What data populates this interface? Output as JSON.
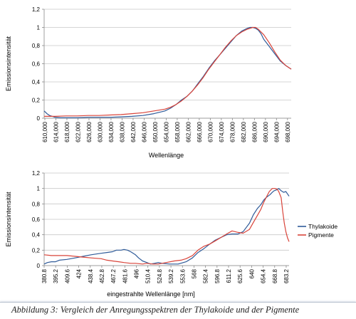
{
  "chart_data": [
    {
      "type": "line",
      "title": "",
      "xlabel": "Wellenlänge",
      "ylabel": "Emissionsintensität",
      "ylim": [
        0,
        1.2
      ],
      "yticks": [
        "0",
        "0,2",
        "0,4",
        "0,6",
        "0,8",
        "1",
        "1,2"
      ],
      "xlim": [
        610,
        700
      ],
      "xticks": [
        "610,000",
        "614,000",
        "618,000",
        "622,000",
        "626,000",
        "630,000",
        "634,000",
        "638,000",
        "642,000",
        "646,000",
        "650,000",
        "654,000",
        "658,000",
        "662,000",
        "666,000",
        "670,000",
        "674,000",
        "678,000",
        "682,000",
        "686,000",
        "690,000",
        "694,000",
        "698,000"
      ],
      "grid": "horizontal",
      "legend": "none",
      "series": [
        {
          "color": "#2f5b99",
          "x": [
            610,
            611,
            612,
            613,
            614,
            616,
            618,
            622,
            626,
            630,
            634,
            638,
            642,
            646,
            650,
            654,
            656,
            658,
            660,
            662,
            664,
            666,
            668,
            670,
            672,
            674,
            676,
            678,
            680,
            682,
            684,
            685,
            686,
            687,
            688,
            689,
            690,
            692,
            694,
            696,
            698,
            700
          ],
          "y": [
            0.08,
            0.05,
            0.03,
            0.02,
            0.01,
            0.005,
            0.005,
            0.005,
            0.01,
            0.01,
            0.01,
            0.015,
            0.02,
            0.03,
            0.05,
            0.08,
            0.11,
            0.15,
            0.2,
            0.24,
            0.3,
            0.38,
            0.46,
            0.55,
            0.63,
            0.7,
            0.77,
            0.84,
            0.91,
            0.96,
            0.99,
            1.0,
            1.0,
            0.99,
            0.97,
            0.93,
            0.87,
            0.79,
            0.71,
            0.63,
            0.58,
            0.54
          ]
        },
        {
          "color": "#d9443a",
          "x": [
            610,
            612,
            614,
            618,
            622,
            626,
            630,
            634,
            638,
            642,
            646,
            650,
            654,
            656,
            658,
            660,
            662,
            664,
            666,
            668,
            670,
            672,
            674,
            676,
            678,
            680,
            682,
            684,
            685,
            686,
            687,
            688,
            690,
            692,
            694,
            696,
            698,
            700
          ],
          "y": [
            0.02,
            0.02,
            0.02,
            0.025,
            0.025,
            0.03,
            0.03,
            0.035,
            0.04,
            0.05,
            0.06,
            0.08,
            0.1,
            0.12,
            0.15,
            0.19,
            0.24,
            0.3,
            0.37,
            0.45,
            0.54,
            0.62,
            0.7,
            0.78,
            0.85,
            0.91,
            0.95,
            0.98,
            0.99,
            1.0,
            1.0,
            0.98,
            0.92,
            0.83,
            0.73,
            0.64,
            0.58,
            0.54
          ]
        }
      ]
    },
    {
      "type": "line",
      "title": "",
      "xlabel": "eingestrahlte Wellenlänge [nm]",
      "ylabel": "Emissionsintensität",
      "ylim": [
        0,
        1.2
      ],
      "yticks": [
        "0",
        "0,2",
        "0,4",
        "0,6",
        "0,8",
        "1",
        "1,2"
      ],
      "xlim": [
        380.8,
        690
      ],
      "xticks": [
        "380.8",
        "395.2",
        "409.6",
        "424",
        "438.4",
        "452.8",
        "467.2",
        "481.6",
        "496",
        "510.4",
        "524.8",
        "539.2",
        "553.6",
        "568",
        "582.4",
        "596.8",
        "611.2",
        "625.6",
        "640",
        "654.4",
        "668.8",
        "683.2"
      ],
      "grid": "horizontal",
      "legend": "right",
      "series": [
        {
          "name": "Thylakoide",
          "color": "#2f5b99",
          "x": [
            380.8,
            385,
            390,
            395.2,
            400,
            409.6,
            420,
            430,
            440,
            452.8,
            460,
            467.2,
            472,
            478,
            481.6,
            486,
            490,
            496,
            500,
            505,
            510.4,
            515,
            520,
            524.8,
            530,
            539.2,
            550,
            560,
            568,
            575,
            582.4,
            590,
            596.8,
            605,
            611.2,
            618,
            625.6,
            632,
            640,
            645,
            650,
            654.4,
            658,
            662,
            666,
            668.8,
            671,
            674,
            677,
            680,
            683.2,
            686,
            688,
            690
          ],
          "y": [
            0.02,
            0.04,
            0.05,
            0.05,
            0.07,
            0.08,
            0.1,
            0.12,
            0.14,
            0.16,
            0.17,
            0.18,
            0.2,
            0.2,
            0.21,
            0.2,
            0.18,
            0.14,
            0.1,
            0.06,
            0.04,
            0.02,
            0.03,
            0.04,
            0.03,
            0.02,
            0.02,
            0.05,
            0.1,
            0.17,
            0.22,
            0.28,
            0.33,
            0.37,
            0.4,
            0.41,
            0.41,
            0.44,
            0.55,
            0.66,
            0.74,
            0.79,
            0.85,
            0.89,
            0.92,
            0.95,
            0.97,
            0.98,
            1.0,
            0.97,
            0.95,
            0.96,
            0.93,
            0.9
          ]
        },
        {
          "name": "Pigmente",
          "color": "#d9443a",
          "x": [
            380.8,
            390,
            400,
            409.6,
            420,
            430,
            440,
            452.8,
            460,
            467.2,
            475,
            481.6,
            490,
            496,
            505,
            510.4,
            518,
            524.8,
            535,
            545,
            553.6,
            560,
            568,
            575,
            582.4,
            590,
            596.8,
            605,
            611.2,
            618,
            625.6,
            632,
            640,
            645,
            650,
            654.4,
            658,
            662,
            665,
            668.8,
            672,
            675,
            677,
            680,
            682,
            684,
            686,
            688,
            690
          ],
          "y": [
            0.14,
            0.13,
            0.13,
            0.13,
            0.12,
            0.11,
            0.1,
            0.09,
            0.07,
            0.06,
            0.05,
            0.04,
            0.03,
            0.03,
            0.02,
            0.03,
            0.02,
            0.02,
            0.04,
            0.06,
            0.07,
            0.09,
            0.13,
            0.2,
            0.25,
            0.28,
            0.32,
            0.37,
            0.41,
            0.45,
            0.43,
            0.42,
            0.47,
            0.56,
            0.65,
            0.73,
            0.82,
            0.9,
            0.96,
            1.0,
            1.0,
            0.99,
            0.96,
            0.88,
            0.7,
            0.55,
            0.44,
            0.36,
            0.31
          ]
        }
      ]
    }
  ],
  "caption": "Abbildung 3: Vergleich der Anregungsspektren der Thylakoide und der Pigmente"
}
